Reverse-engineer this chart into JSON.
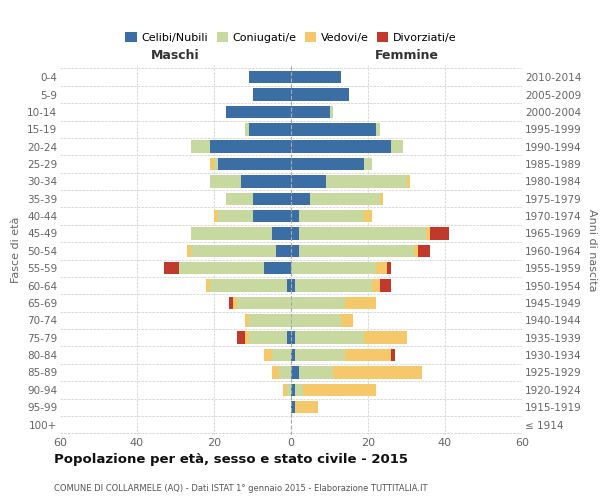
{
  "age_groups": [
    "100+",
    "95-99",
    "90-94",
    "85-89",
    "80-84",
    "75-79",
    "70-74",
    "65-69",
    "60-64",
    "55-59",
    "50-54",
    "45-49",
    "40-44",
    "35-39",
    "30-34",
    "25-29",
    "20-24",
    "15-19",
    "10-14",
    "5-9",
    "0-4"
  ],
  "birth_years": [
    "≤ 1914",
    "1915-1919",
    "1920-1924",
    "1925-1929",
    "1930-1934",
    "1935-1939",
    "1940-1944",
    "1945-1949",
    "1950-1954",
    "1955-1959",
    "1960-1964",
    "1965-1969",
    "1970-1974",
    "1975-1979",
    "1980-1984",
    "1985-1989",
    "1990-1994",
    "1995-1999",
    "2000-2004",
    "2005-2009",
    "2010-2014"
  ],
  "males": {
    "celibi": [
      0,
      0,
      0,
      0,
      0,
      1,
      0,
      0,
      1,
      7,
      4,
      5,
      10,
      10,
      13,
      19,
      21,
      11,
      17,
      10,
      11
    ],
    "coniugati": [
      0,
      0,
      1,
      3,
      5,
      10,
      11,
      14,
      20,
      22,
      22,
      21,
      9,
      7,
      8,
      1,
      5,
      1,
      0,
      0,
      0
    ],
    "vedovi": [
      0,
      0,
      1,
      2,
      2,
      1,
      1,
      1,
      1,
      0,
      1,
      0,
      1,
      0,
      0,
      1,
      0,
      0,
      0,
      0,
      0
    ],
    "divorziati": [
      0,
      0,
      0,
      0,
      0,
      2,
      0,
      1,
      0,
      4,
      0,
      0,
      0,
      0,
      0,
      0,
      0,
      0,
      0,
      0,
      0
    ]
  },
  "females": {
    "nubili": [
      0,
      1,
      1,
      2,
      1,
      1,
      0,
      0,
      1,
      0,
      2,
      2,
      2,
      5,
      9,
      19,
      26,
      22,
      10,
      15,
      13
    ],
    "coniugate": [
      0,
      0,
      2,
      9,
      13,
      18,
      13,
      14,
      20,
      22,
      30,
      33,
      17,
      18,
      21,
      2,
      3,
      1,
      1,
      0,
      0
    ],
    "vedove": [
      0,
      6,
      19,
      23,
      12,
      11,
      3,
      8,
      2,
      3,
      1,
      1,
      2,
      1,
      1,
      0,
      0,
      0,
      0,
      0,
      0
    ],
    "divorziate": [
      0,
      0,
      0,
      0,
      1,
      0,
      0,
      0,
      3,
      1,
      3,
      5,
      0,
      0,
      0,
      0,
      0,
      0,
      0,
      0,
      0
    ]
  },
  "colors": {
    "celibi": "#3b6ea5",
    "coniugati": "#c8d9a0",
    "vedovi": "#f5c96a",
    "divorziati": "#c0392b"
  },
  "title": "Popolazione per età, sesso e stato civile - 2015",
  "subtitle": "COMUNE DI COLLARMELE (AQ) - Dati ISTAT 1° gennaio 2015 - Elaborazione TUTTITALIA.IT",
  "xlabel_left": "Maschi",
  "xlabel_right": "Femmine",
  "ylabel_left": "Fasce di età",
  "ylabel_right": "Anni di nascita",
  "xlim": 60,
  "legend_labels": [
    "Celibi/Nubili",
    "Coniugati/e",
    "Vedovi/e",
    "Divorziati/e"
  ],
  "bg_color": "#ffffff",
  "grid_color": "#cccccc"
}
